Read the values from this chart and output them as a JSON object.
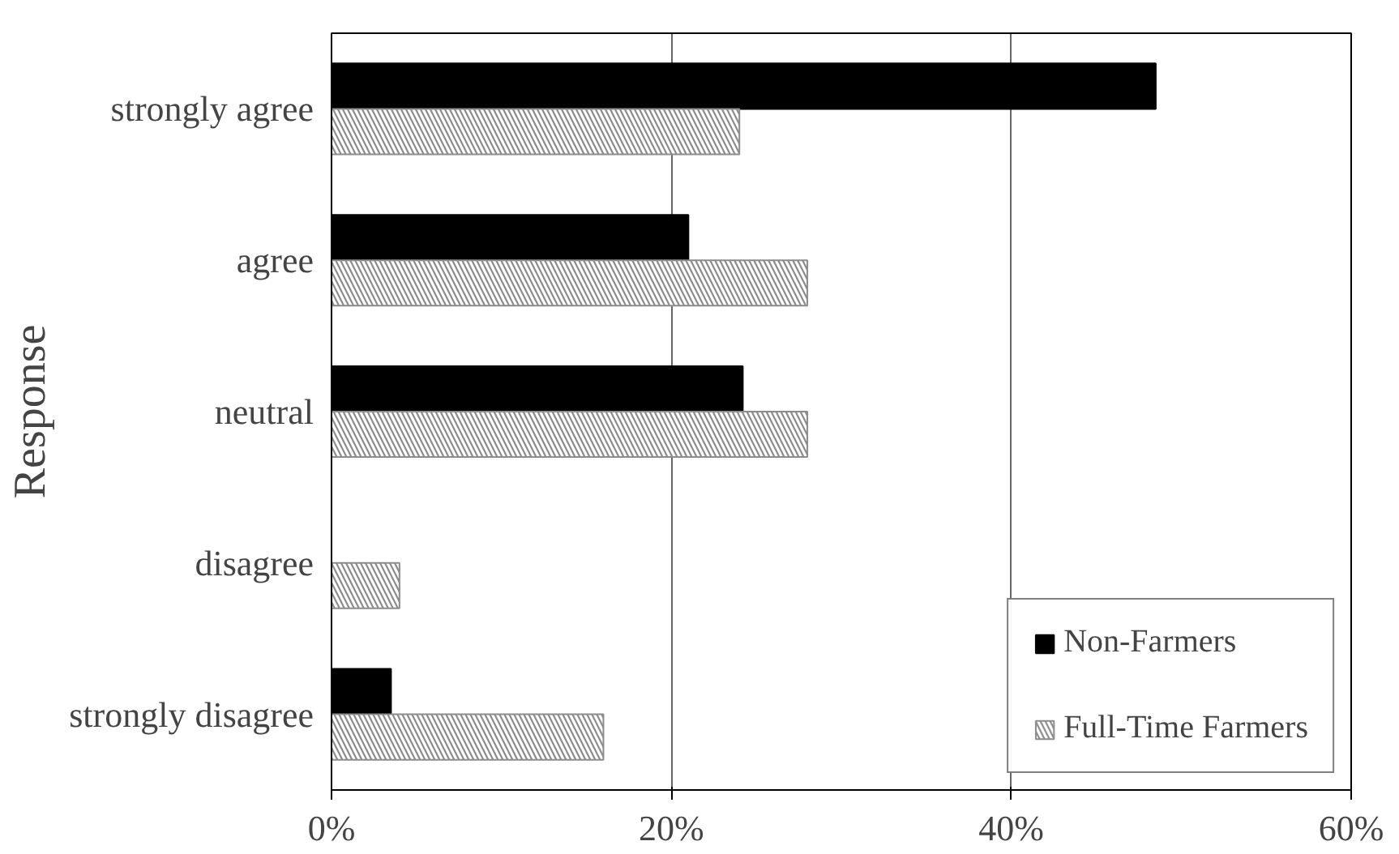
{
  "chart_data": {
    "type": "bar",
    "orientation": "horizontal",
    "ylabel": "Response",
    "categories": [
      "strongly agree",
      "agree",
      "neutral",
      "disagree",
      "strongly disagree"
    ],
    "series": [
      {
        "name": "Non-Farmers",
        "color": "#000000",
        "values": [
          48.5,
          21,
          24.2,
          0,
          3.5
        ]
      },
      {
        "name": "Full-Time Farmers",
        "color": "#8c8c8c",
        "values": [
          24,
          28,
          28,
          4,
          16
        ]
      }
    ],
    "xlim": [
      0,
      60
    ],
    "xticks": [
      {
        "value": 0,
        "label": "0%"
      },
      {
        "value": 20,
        "label": "20%"
      },
      {
        "value": 40,
        "label": "40%"
      },
      {
        "value": 60,
        "label": "60%"
      }
    ],
    "grid": "x",
    "legend": "bottom right"
  }
}
